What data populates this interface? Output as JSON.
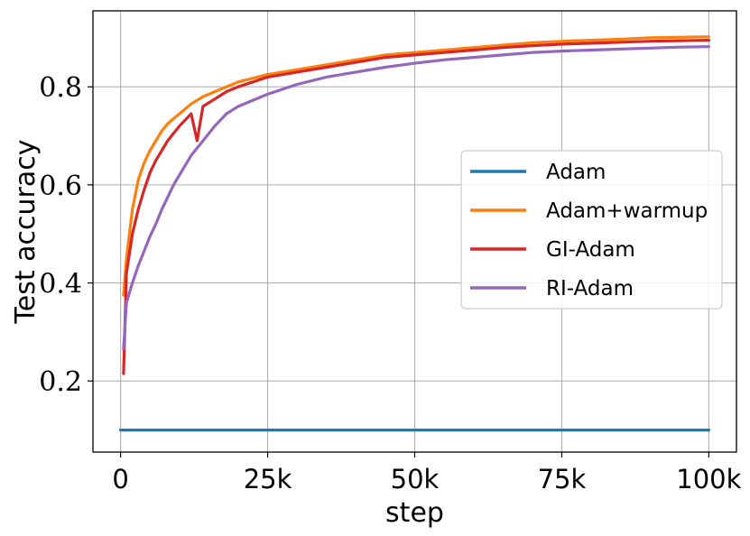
{
  "chart_data": {
    "type": "line",
    "xlabel": "step",
    "ylabel": "Test accuracy",
    "xlim": [
      -4700,
      104700
    ],
    "ylim": [
      0.055,
      0.955
    ],
    "xticks": [
      0,
      25000,
      50000,
      75000,
      100000
    ],
    "xtick_labels": [
      "0",
      "25k",
      "50k",
      "75k",
      "100k"
    ],
    "yticks": [
      0.2,
      0.4,
      0.6,
      0.8
    ],
    "ytick_labels": [
      "0.2",
      "0.4",
      "0.6",
      "0.8"
    ],
    "grid": true,
    "legend_position": "center-right",
    "series": [
      {
        "name": "Adam",
        "color": "#1f77b4",
        "x": [
          0,
          10000,
          20000,
          30000,
          40000,
          50000,
          60000,
          70000,
          80000,
          90000,
          100000
        ],
        "y": [
          0.1,
          0.1,
          0.1,
          0.1,
          0.1,
          0.1,
          0.1,
          0.1,
          0.1,
          0.1,
          0.1
        ]
      },
      {
        "name": "Adam+warmup",
        "color": "#ff7f0e",
        "x": [
          500,
          1000,
          2000,
          3000,
          4000,
          5000,
          6000,
          7000,
          8000,
          9000,
          10000,
          12000,
          14000,
          16000,
          18000,
          20000,
          25000,
          30000,
          35000,
          40000,
          45000,
          50000,
          55000,
          60000,
          65000,
          70000,
          75000,
          80000,
          85000,
          90000,
          95000,
          100000
        ],
        "y": [
          0.375,
          0.45,
          0.55,
          0.61,
          0.645,
          0.67,
          0.69,
          0.71,
          0.725,
          0.735,
          0.745,
          0.765,
          0.78,
          0.79,
          0.8,
          0.81,
          0.825,
          0.835,
          0.845,
          0.855,
          0.865,
          0.87,
          0.875,
          0.88,
          0.885,
          0.89,
          0.893,
          0.895,
          0.897,
          0.9,
          0.901,
          0.902
        ]
      },
      {
        "name": "GI-Adam",
        "color": "#d62728",
        "x": [
          500,
          1000,
          2000,
          3000,
          4000,
          5000,
          6000,
          7000,
          8000,
          9000,
          10000,
          12000,
          13000,
          14000,
          16000,
          18000,
          20000,
          25000,
          30000,
          35000,
          40000,
          45000,
          50000,
          55000,
          60000,
          65000,
          70000,
          75000,
          80000,
          85000,
          90000,
          95000,
          100000
        ],
        "y": [
          0.215,
          0.42,
          0.5,
          0.55,
          0.59,
          0.625,
          0.65,
          0.67,
          0.69,
          0.705,
          0.72,
          0.745,
          0.69,
          0.76,
          0.775,
          0.79,
          0.8,
          0.82,
          0.83,
          0.84,
          0.85,
          0.86,
          0.865,
          0.87,
          0.875,
          0.88,
          0.884,
          0.887,
          0.889,
          0.891,
          0.893,
          0.894,
          0.895
        ]
      },
      {
        "name": "RI-Adam",
        "color": "#9467bd",
        "x": [
          500,
          1000,
          2000,
          3000,
          4000,
          5000,
          6000,
          7000,
          8000,
          9000,
          10000,
          12000,
          14000,
          16000,
          18000,
          20000,
          25000,
          30000,
          35000,
          40000,
          45000,
          50000,
          55000,
          60000,
          65000,
          70000,
          75000,
          80000,
          85000,
          90000,
          95000,
          100000
        ],
        "y": [
          0.265,
          0.36,
          0.4,
          0.435,
          0.465,
          0.495,
          0.52,
          0.55,
          0.575,
          0.6,
          0.62,
          0.66,
          0.69,
          0.72,
          0.745,
          0.76,
          0.785,
          0.805,
          0.82,
          0.83,
          0.84,
          0.848,
          0.855,
          0.86,
          0.865,
          0.87,
          0.873,
          0.875,
          0.877,
          0.879,
          0.881,
          0.882
        ]
      }
    ]
  }
}
